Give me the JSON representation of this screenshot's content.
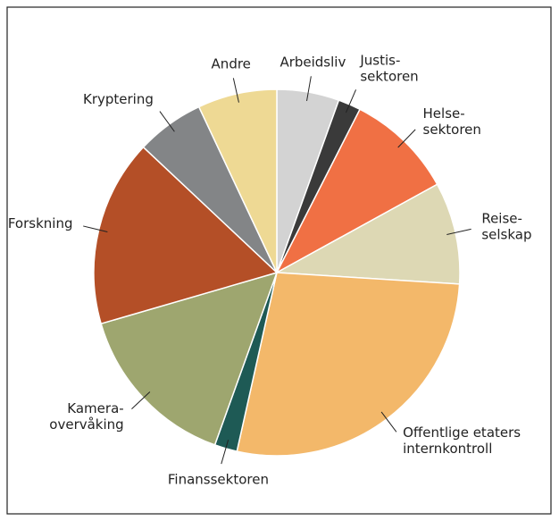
{
  "chart_data": {
    "type": "pie",
    "categories": [
      "Arbeidsliv",
      "Justis-\nsektoren",
      "Helse-\nsektoren",
      "Reise-\nselskap",
      "Offentlige etaters\ninternkontroll",
      "Finanssektoren",
      "Kamera-\novervåking",
      "Forskning",
      "Kryptering",
      "Andre"
    ],
    "values": [
      5.5,
      2,
      9.5,
      9,
      27.5,
      2,
      15,
      16.5,
      6,
      7
    ],
    "colors": [
      "#d3d3d3",
      "#3a3a3a",
      "#f07044",
      "#ddd8b4",
      "#f3b86a",
      "#1e5a55",
      "#9ea66f",
      "#b44f27",
      "#838587",
      "#eed994"
    ]
  }
}
